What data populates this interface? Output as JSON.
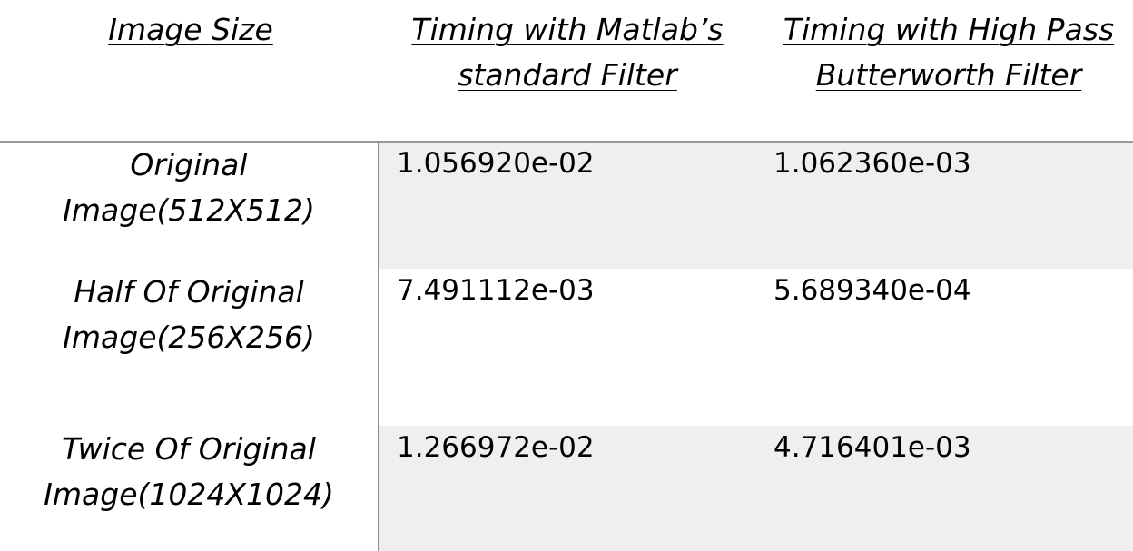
{
  "headers": {
    "image_size": "Image Size",
    "matlab_line1": "Timing with Matlab’s",
    "matlab_line2": "standard Filter",
    "butterworth_line1": "Timing with High Pass",
    "butterworth_line2": "Butterworth Filter"
  },
  "rows": [
    {
      "label_line1": "Original",
      "label_line2": "Image(512X512)",
      "matlab": "1.056920e-02",
      "butterworth": "1.062360e-03"
    },
    {
      "label_line1": "Half Of Original",
      "label_line2": "Image(256X256)",
      "matlab": "7.491112e-03",
      "butterworth": "5.689340e-04"
    },
    {
      "label_line1": "Twice Of Original",
      "label_line2": "Image(1024X1024)",
      "matlab": "1.266972e-02",
      "butterworth": "4.716401e-03"
    }
  ]
}
